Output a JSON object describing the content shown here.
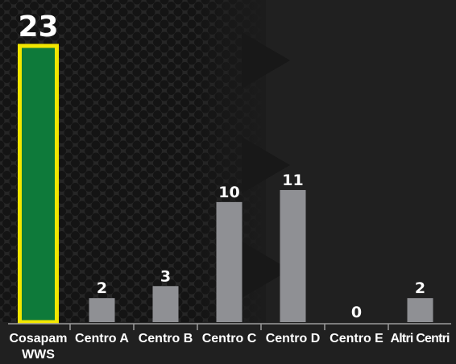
{
  "chart_data": {
    "type": "bar",
    "categories": [
      "Cosapam WWS",
      "Centro A",
      "Centro B",
      "Centro C",
      "Centro D",
      "Centro E",
      "Altri Centri"
    ],
    "values": [
      23,
      2,
      3,
      10,
      11,
      0,
      2
    ],
    "title": "",
    "xlabel": "",
    "ylabel": "",
    "ylim": [
      0,
      25
    ],
    "grid": false,
    "legend": "none",
    "colors": {
      "highlight_fill": "#0e7a3a",
      "highlight_border": "#f2e600",
      "bar_fill": "#8f9094",
      "axis": "#9a9a9a",
      "text": "#ffffff",
      "background": "#1c1c1c"
    }
  }
}
